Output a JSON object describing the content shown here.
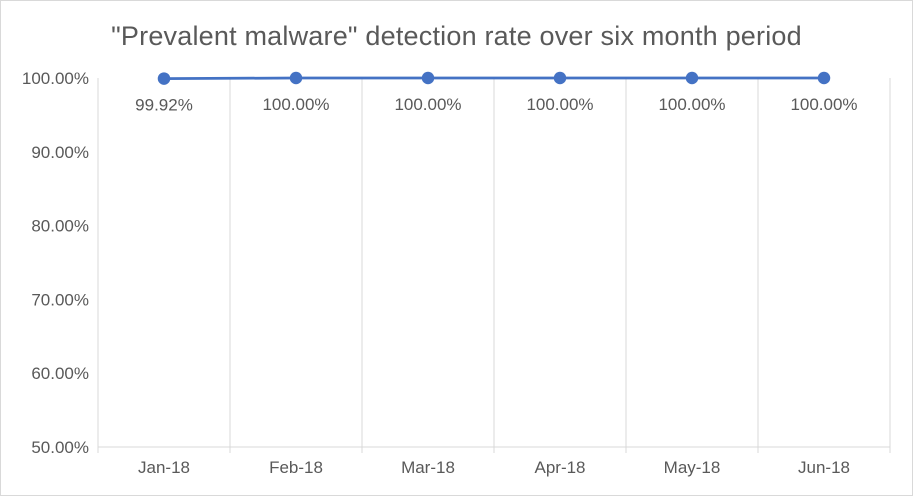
{
  "chart_data": {
    "type": "line",
    "title": "\"Prevalent malware\" detection rate over six month period",
    "categories": [
      "Jan-18",
      "Feb-18",
      "Mar-18",
      "Apr-18",
      "May-18",
      "Jun-18"
    ],
    "values": [
      99.92,
      100.0,
      100.0,
      100.0,
      100.0,
      100.0
    ],
    "data_labels": [
      "99.92%",
      "100.00%",
      "100.00%",
      "100.00%",
      "100.00%",
      "100.00%"
    ],
    "y_tick_values": [
      100,
      90,
      80,
      70,
      60,
      50
    ],
    "y_tick_labels": [
      "100.00%",
      "90.00%",
      "80.00%",
      "70.00%",
      "60.00%",
      "50.00%"
    ],
    "ylim": [
      50,
      100
    ],
    "xlabel": "",
    "ylabel": "",
    "legend": "none",
    "grid": "vertical-only",
    "colors": {
      "line": "#4472C4",
      "marker": "#4472C4",
      "grid": "#D9D9D9",
      "axis": "#D9D9D9",
      "text": "#595959",
      "background": "#FFFFFF",
      "border": "#D9D9D9"
    }
  }
}
